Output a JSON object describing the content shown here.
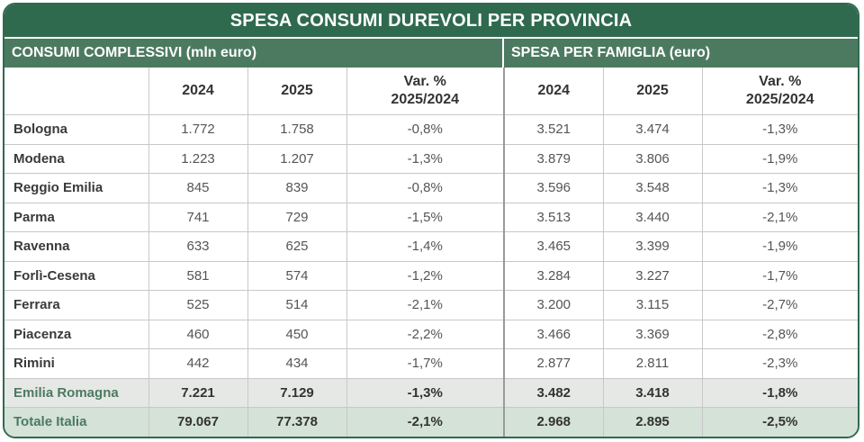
{
  "title": "SPESA CONSUMI DUREVOLI PER PROVINCIA",
  "sections": {
    "left": "CONSUMI COMPLESSIVI (mln euro)",
    "right": "SPESA PER FAMIGLIA (euro)"
  },
  "headers": {
    "y2024": "2024",
    "y2025": "2025",
    "var_line1": "Var. %",
    "var_line2": "2025/2024"
  },
  "rows": [
    {
      "name": "Bologna",
      "c2024": "1.772",
      "c2025": "1.758",
      "cvar": "-0,8%",
      "f2024": "3.521",
      "f2025": "3.474",
      "fvar": "-1,3%"
    },
    {
      "name": "Modena",
      "c2024": "1.223",
      "c2025": "1.207",
      "cvar": "-1,3%",
      "f2024": "3.879",
      "f2025": "3.806",
      "fvar": "-1,9%"
    },
    {
      "name": "Reggio Emilia",
      "c2024": "845",
      "c2025": "839",
      "cvar": "-0,8%",
      "f2024": "3.596",
      "f2025": "3.548",
      "fvar": "-1,3%"
    },
    {
      "name": "Parma",
      "c2024": "741",
      "c2025": "729",
      "cvar": "-1,5%",
      "f2024": "3.513",
      "f2025": "3.440",
      "fvar": "-2,1%"
    },
    {
      "name": "Ravenna",
      "c2024": "633",
      "c2025": "625",
      "cvar": "-1,4%",
      "f2024": "3.465",
      "f2025": "3.399",
      "fvar": "-1,9%"
    },
    {
      "name": "Forlì-Cesena",
      "c2024": "581",
      "c2025": "574",
      "cvar": "-1,2%",
      "f2024": "3.284",
      "f2025": "3.227",
      "fvar": "-1,7%"
    },
    {
      "name": "Ferrara",
      "c2024": "525",
      "c2025": "514",
      "cvar": "-2,1%",
      "f2024": "3.200",
      "f2025": "3.115",
      "fvar": "-2,7%"
    },
    {
      "name": "Piacenza",
      "c2024": "460",
      "c2025": "450",
      "cvar": "-2,2%",
      "f2024": "3.466",
      "f2025": "3.369",
      "fvar": "-2,8%"
    },
    {
      "name": "Rimini",
      "c2024": "442",
      "c2025": "434",
      "cvar": "-1,7%",
      "f2024": "2.877",
      "f2025": "2.811",
      "fvar": "-2,3%"
    }
  ],
  "total_region": {
    "name": "Emilia Romagna",
    "c2024": "7.221",
    "c2025": "7.129",
    "cvar": "-1,3%",
    "f2024": "3.482",
    "f2025": "3.418",
    "fvar": "-1,8%"
  },
  "total_italy": {
    "name": "Totale Italia",
    "c2024": "79.067",
    "c2025": "77.378",
    "cvar": "-2,1%",
    "f2024": "2.968",
    "f2025": "2.895",
    "fvar": "-2,5%"
  },
  "colors": {
    "header_green": "#2f6a4f",
    "section_green": "#4c7a60",
    "total_italy_bg": "#d4e2d8",
    "total_region_bg": "#e6e8e6"
  }
}
